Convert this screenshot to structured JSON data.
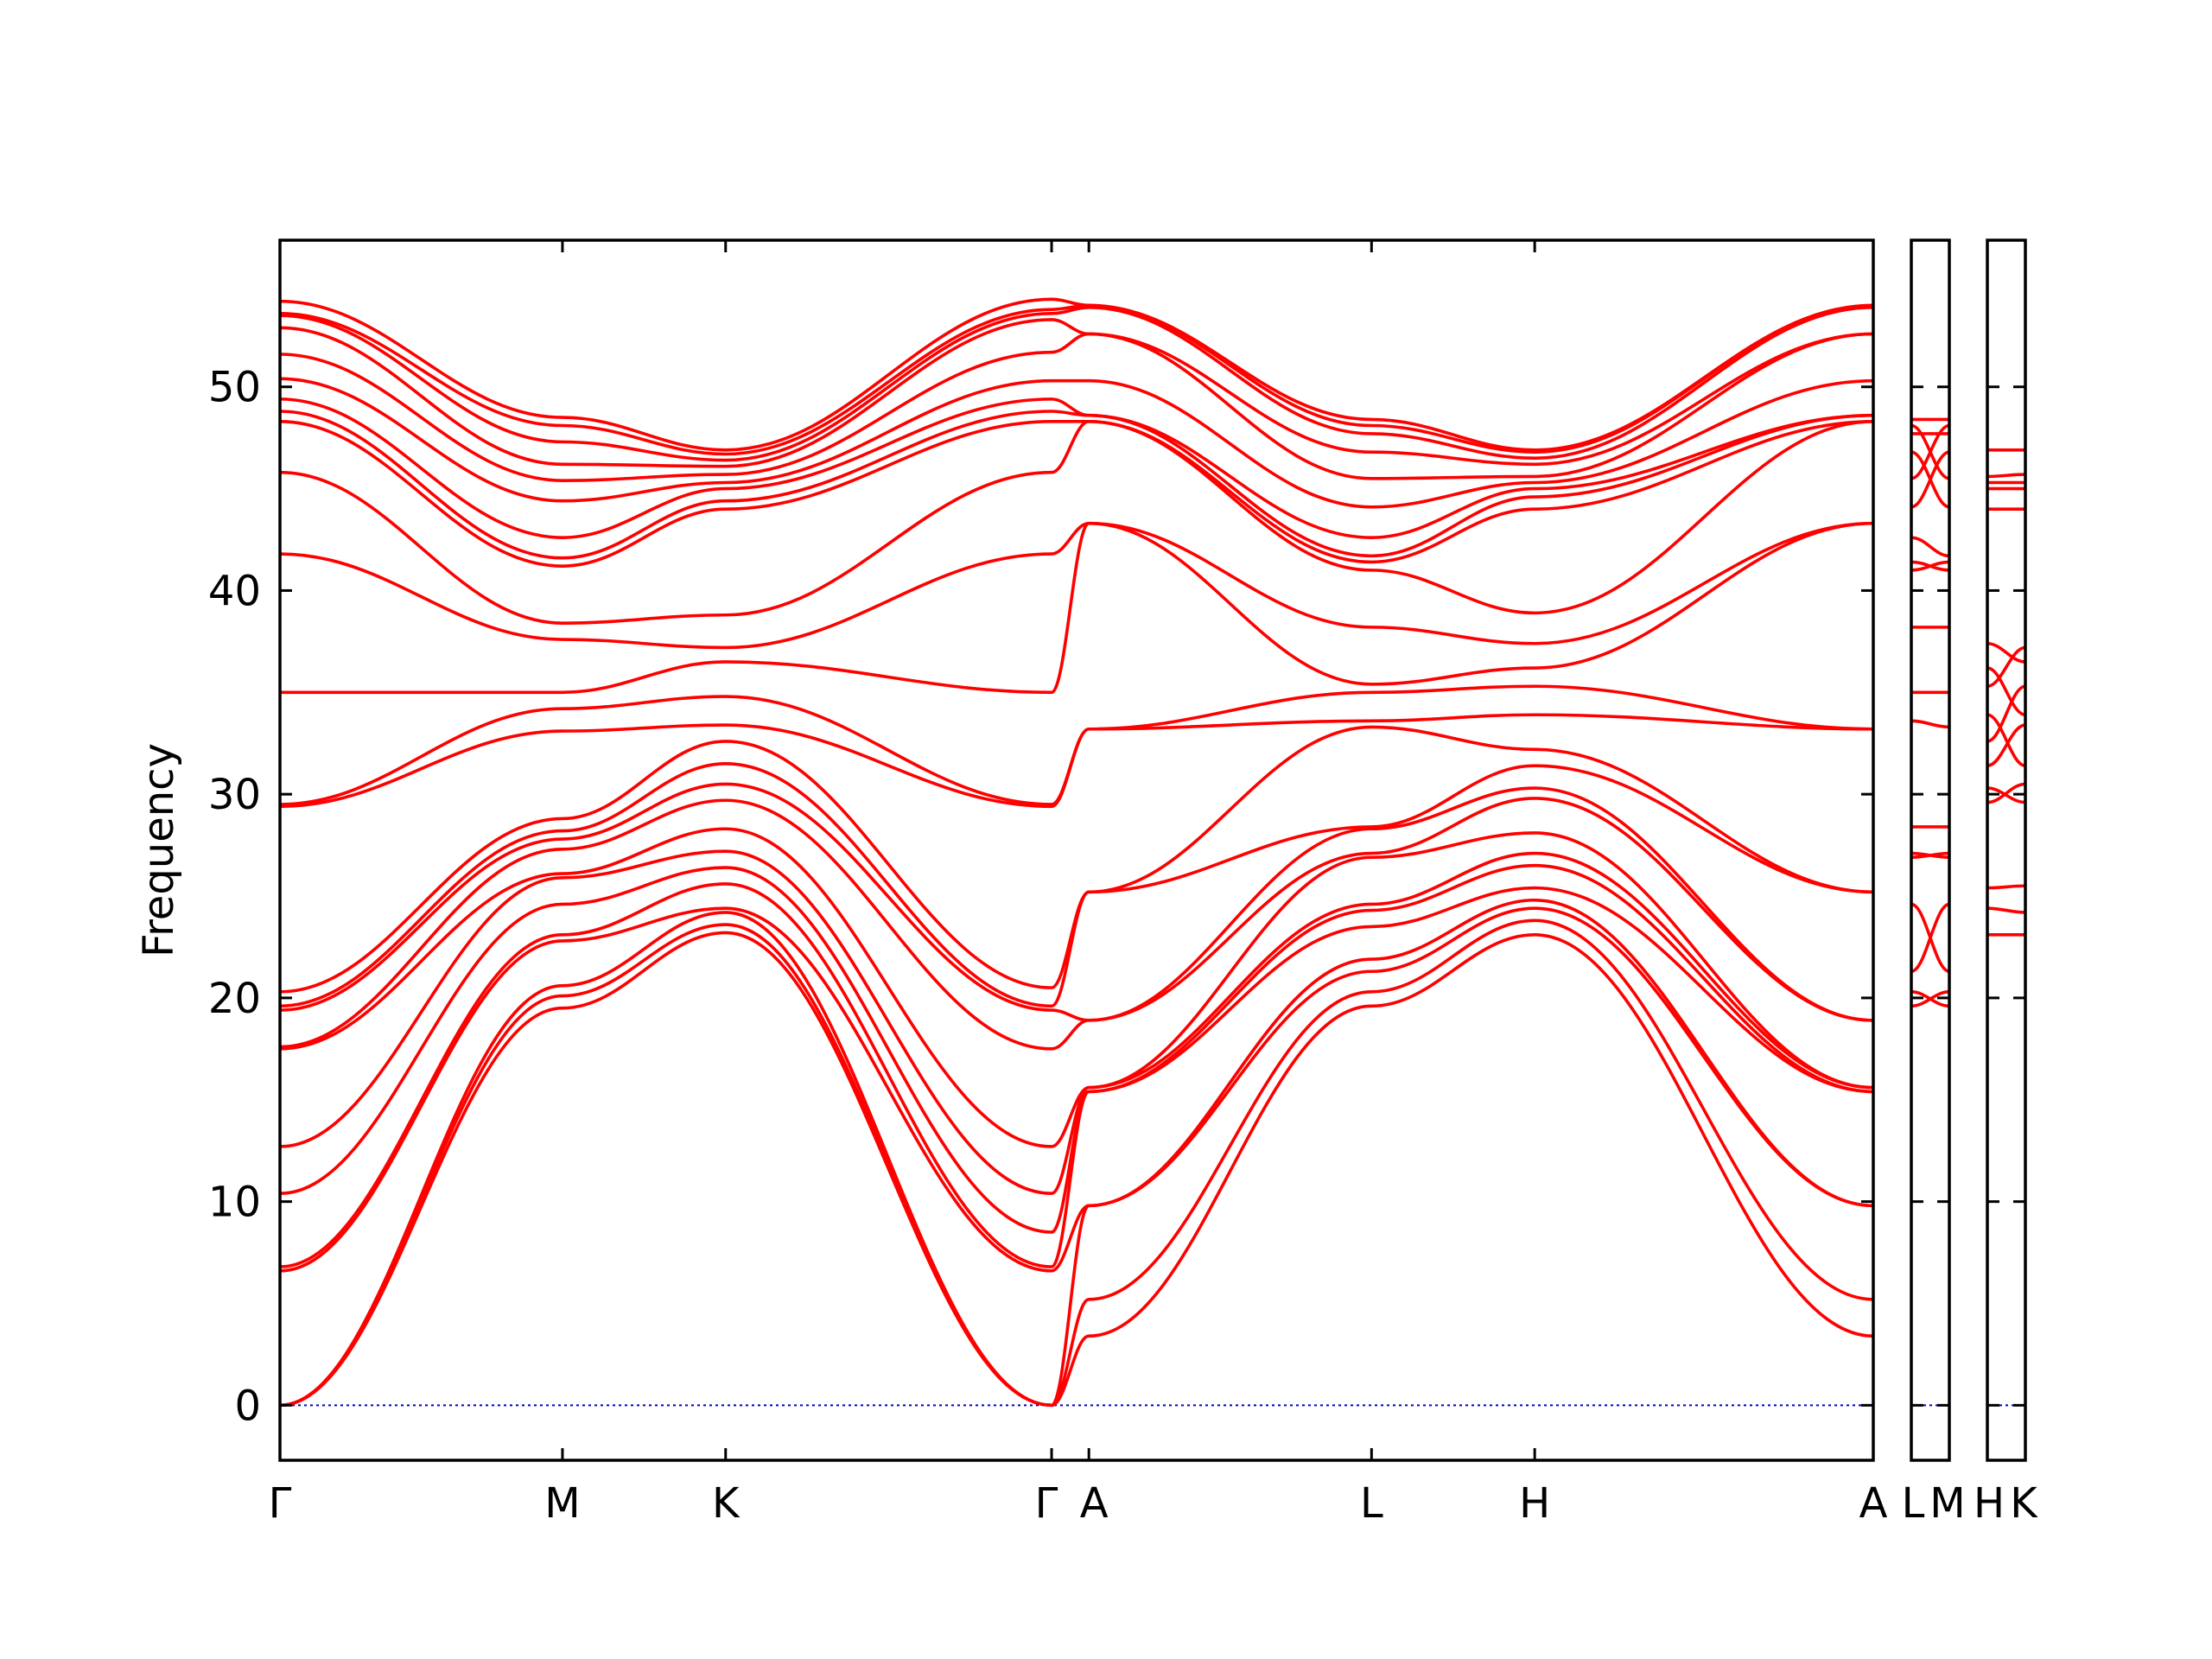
{
  "chart_data": [
    {
      "type": "line",
      "title": "",
      "xlabel": "",
      "ylabel": "Frequency",
      "ylim": [
        -2.7,
        57.2
      ],
      "yticks": [
        0,
        10,
        20,
        30,
        40,
        50
      ],
      "grid": false,
      "legend": "none",
      "colors": {
        "band": "#ff0000",
        "zero": "#0000cc",
        "frame": "#000000"
      },
      "path_labels": [
        "Γ",
        "M",
        "K",
        "Γ",
        "A",
        "L",
        "H",
        "A"
      ],
      "path_positions": [
        0,
        0.1773,
        0.2797,
        0.4843,
        0.5077,
        0.6851,
        0.7875,
        1.0
      ],
      "series": [
        {
          "x": [
            0,
            0.1773,
            0.2797,
            0.4843,
            0.5077,
            0.6851,
            0.7875,
            1.0
          ],
          "y": [
            0,
            19.5,
            23.2,
            0,
            3.4,
            19.6,
            23.1,
            3.4
          ]
        },
        {
          "x": [
            0,
            0.1773,
            0.2797,
            0.4843,
            0.5077,
            0.6851,
            0.7875,
            1.0
          ],
          "y": [
            0,
            20.1,
            23.6,
            0,
            5.2,
            20.3,
            23.8,
            5.2
          ]
        },
        {
          "x": [
            0,
            0.1773,
            0.2797,
            0.4843,
            0.5077,
            0.6851,
            0.7875,
            1.0
          ],
          "y": [
            0,
            20.6,
            24.2,
            0,
            9.8,
            21.3,
            24.4,
            9.8
          ]
        },
        {
          "x": [
            0,
            0.1773,
            0.2797,
            0.4843,
            0.5077,
            0.6851,
            0.7875,
            1.0
          ],
          "y": [
            6.6,
            22.8,
            24.4,
            6.6,
            9.8,
            21.9,
            24.8,
            9.8
          ]
        },
        {
          "x": [
            0,
            0.1773,
            0.2797,
            0.4843,
            0.5077,
            0.6851,
            0.7875,
            1.0
          ],
          "y": [
            6.8,
            23.1,
            25.6,
            6.8,
            15.4,
            23.5,
            25.4,
            15.4
          ]
        },
        {
          "x": [
            0,
            0.1773,
            0.2797,
            0.4843,
            0.5077,
            0.6851,
            0.7875,
            1.0
          ],
          "y": [
            10.4,
            24.6,
            26.4,
            8.5,
            15.4,
            24.3,
            26.5,
            15.4
          ]
        },
        {
          "x": [
            0,
            0.1773,
            0.2797,
            0.4843,
            0.5077,
            0.6851,
            0.7875,
            1.0
          ],
          "y": [
            12.7,
            25.9,
            27.2,
            10.4,
            15.6,
            24.6,
            27.1,
            15.6
          ]
        },
        {
          "x": [
            0,
            0.1773,
            0.2797,
            0.4843,
            0.5077,
            0.6851,
            0.7875,
            1.0
          ],
          "y": [
            17.5,
            26.1,
            28.3,
            12.7,
            15.6,
            26.9,
            28.1,
            15.6
          ]
        },
        {
          "x": [
            0,
            0.1773,
            0.2797,
            0.4843,
            0.5077,
            0.6851,
            0.7875,
            1.0
          ],
          "y": [
            17.6,
            27.3,
            29.7,
            17.5,
            18.9,
            27.1,
            29.8,
            18.9
          ]
        },
        {
          "x": [
            0,
            0.1773,
            0.2797,
            0.4843,
            0.5077,
            0.6851,
            0.7875,
            1.0
          ],
          "y": [
            19.4,
            27.8,
            30.5,
            19.4,
            18.9,
            28.3,
            30.3,
            18.9
          ]
        },
        {
          "x": [
            0,
            0.1773,
            0.2797,
            0.4843,
            0.5077,
            0.6851,
            0.7875,
            1.0
          ],
          "y": [
            19.6,
            28.2,
            31.5,
            19.6,
            25.2,
            28.4,
            31.4,
            25.2
          ]
        },
        {
          "x": [
            0,
            0.1773,
            0.2797,
            0.4843,
            0.5077,
            0.6851,
            0.7875,
            1.0
          ],
          "y": [
            20.3,
            28.8,
            32.6,
            20.5,
            25.2,
            33.3,
            32.2,
            25.2
          ]
        },
        {
          "x": [
            0,
            0.1773,
            0.2797,
            0.4843,
            0.5077,
            0.6851,
            0.7875,
            1.0
          ],
          "y": [
            29.4,
            33.1,
            33.4,
            29.4,
            33.2,
            33.6,
            33.9,
            33.2
          ]
        },
        {
          "x": [
            0,
            0.1773,
            0.2797,
            0.4843,
            0.5077,
            0.6851,
            0.7875,
            1.0
          ],
          "y": [
            29.5,
            34.2,
            34.8,
            29.5,
            33.2,
            35.0,
            35.3,
            33.2
          ]
        },
        {
          "x": [
            0,
            0.1773,
            0.2797,
            0.4843,
            0.5077,
            0.6851,
            0.7875,
            1.0
          ],
          "y": [
            35.0,
            35.0,
            36.5,
            35.0,
            43.3,
            35.4,
            36.2,
            43.3
          ]
        },
        {
          "x": [
            0,
            0.1773,
            0.2797,
            0.4843,
            0.5077,
            0.6851,
            0.7875,
            1.0
          ],
          "y": [
            41.8,
            37.6,
            37.2,
            41.8,
            43.3,
            38.2,
            37.4,
            43.3
          ]
        },
        {
          "x": [
            0,
            0.1773,
            0.2797,
            0.4843,
            0.5077,
            0.6851,
            0.7875,
            1.0
          ],
          "y": [
            45.8,
            38.4,
            38.8,
            45.8,
            48.3,
            41.0,
            38.9,
            48.3
          ]
        },
        {
          "x": [
            0,
            0.1773,
            0.2797,
            0.4843,
            0.5077,
            0.6851,
            0.7875,
            1.0
          ],
          "y": [
            48.3,
            41.2,
            44.0,
            48.3,
            48.3,
            41.4,
            44.0,
            48.3
          ]
        },
        {
          "x": [
            0,
            0.1773,
            0.2797,
            0.4843,
            0.5077,
            0.6851,
            0.7875,
            1.0
          ],
          "y": [
            48.8,
            41.6,
            44.4,
            48.8,
            48.6,
            41.7,
            44.6,
            48.6
          ]
        },
        {
          "x": [
            0,
            0.1773,
            0.2797,
            0.4843,
            0.5077,
            0.6851,
            0.7875,
            1.0
          ],
          "y": [
            49.4,
            42.6,
            45.0,
            49.4,
            48.6,
            42.6,
            45.0,
            48.6
          ]
        },
        {
          "x": [
            0,
            0.1773,
            0.2797,
            0.4843,
            0.5077,
            0.6851,
            0.7875,
            1.0
          ],
          "y": [
            50.4,
            44.4,
            45.3,
            50.3,
            50.3,
            44.1,
            45.3,
            50.3
          ]
        },
        {
          "x": [
            0,
            0.1773,
            0.2797,
            0.4843,
            0.5077,
            0.6851,
            0.7875,
            1.0
          ],
          "y": [
            51.6,
            45.4,
            45.7,
            51.7,
            52.6,
            45.5,
            45.6,
            52.6
          ]
        },
        {
          "x": [
            0,
            0.1773,
            0.2797,
            0.4843,
            0.5077,
            0.6851,
            0.7875,
            1.0
          ],
          "y": [
            52.9,
            46.2,
            46.1,
            53.3,
            52.6,
            46.8,
            46.2,
            52.6
          ]
        },
        {
          "x": [
            0,
            0.1773,
            0.2797,
            0.4843,
            0.5077,
            0.6851,
            0.7875,
            1.0
          ],
          "y": [
            53.5,
            47.3,
            46.4,
            53.6,
            53.9,
            47.7,
            46.5,
            53.9
          ]
        },
        {
          "x": [
            0,
            0.1773,
            0.2797,
            0.4843,
            0.5077,
            0.6851,
            0.7875,
            1.0
          ],
          "y": [
            53.6,
            48.1,
            46.7,
            53.8,
            54.0,
            48.1,
            46.8,
            54.0
          ]
        },
        {
          "x": [
            0,
            0.1773,
            0.2797,
            0.4843,
            0.5077,
            0.6851,
            0.7875,
            1.0
          ],
          "y": [
            54.2,
            48.5,
            46.9,
            54.3,
            54.0,
            48.4,
            46.9,
            54.0
          ]
        }
      ]
    },
    {
      "type": "line",
      "title": "",
      "ylim": [
        -2.7,
        57.2
      ],
      "grid": false,
      "path_labels": [
        "L",
        "M"
      ],
      "colors": {
        "band": "#ff0000"
      },
      "series": [
        {
          "x": [
            0,
            1
          ],
          "y": [
            19.6,
            20.3
          ]
        },
        {
          "x": [
            0,
            1
          ],
          "y": [
            20.3,
            19.6
          ]
        },
        {
          "x": [
            0,
            1
          ],
          "y": [
            21.3,
            24.6
          ]
        },
        {
          "x": [
            0,
            1
          ],
          "y": [
            24.6,
            21.3
          ]
        },
        {
          "x": [
            0,
            1
          ],
          "y": [
            26.9,
            27.1
          ]
        },
        {
          "x": [
            0,
            1
          ],
          "y": [
            27.1,
            26.9
          ]
        },
        {
          "x": [
            0,
            1
          ],
          "y": [
            28.4,
            28.4
          ]
        },
        {
          "x": [
            0,
            1
          ],
          "y": [
            33.6,
            33.3
          ]
        },
        {
          "x": [
            0,
            1
          ],
          "y": [
            35.0,
            35.0
          ]
        },
        {
          "x": [
            0,
            1
          ],
          "y": [
            38.2,
            38.2
          ]
        },
        {
          "x": [
            0,
            1
          ],
          "y": [
            41.0,
            41.4
          ]
        },
        {
          "x": [
            0,
            1
          ],
          "y": [
            41.4,
            41.0
          ]
        },
        {
          "x": [
            0,
            1
          ],
          "y": [
            42.6,
            41.7
          ]
        },
        {
          "x": [
            0,
            1
          ],
          "y": [
            44.1,
            46.8
          ]
        },
        {
          "x": [
            0,
            1
          ],
          "y": [
            45.5,
            48.1
          ]
        },
        {
          "x": [
            0,
            1
          ],
          "y": [
            46.8,
            44.1
          ]
        },
        {
          "x": [
            0,
            1
          ],
          "y": [
            47.7,
            47.7
          ]
        },
        {
          "x": [
            0,
            1
          ],
          "y": [
            48.1,
            45.5
          ]
        },
        {
          "x": [
            0,
            1
          ],
          "y": [
            48.4,
            48.4
          ]
        }
      ]
    },
    {
      "type": "line",
      "title": "",
      "ylim": [
        -2.7,
        57.2
      ],
      "grid": false,
      "path_labels": [
        "H",
        "K"
      ],
      "colors": {
        "band": "#ff0000"
      },
      "series": [
        {
          "x": [
            0,
            1
          ],
          "y": [
            23.1,
            23.1
          ]
        },
        {
          "x": [
            0,
            1
          ],
          "y": [
            24.4,
            24.2
          ]
        },
        {
          "x": [
            0,
            1
          ],
          "y": [
            25.4,
            25.5
          ]
        },
        {
          "x": [
            0,
            1
          ],
          "y": [
            29.6,
            30.5
          ]
        },
        {
          "x": [
            0,
            1
          ],
          "y": [
            30.3,
            29.6
          ]
        },
        {
          "x": [
            0,
            1
          ],
          "y": [
            31.4,
            33.4
          ]
        },
        {
          "x": [
            0,
            1
          ],
          "y": [
            32.6,
            35.3
          ]
        },
        {
          "x": [
            0,
            1
          ],
          "y": [
            33.9,
            31.4
          ]
        },
        {
          "x": [
            0,
            1
          ],
          "y": [
            35.3,
            37.2
          ]
        },
        {
          "x": [
            0,
            1
          ],
          "y": [
            36.2,
            33.9
          ]
        },
        {
          "x": [
            0,
            1
          ],
          "y": [
            37.4,
            36.5
          ]
        },
        {
          "x": [
            0,
            1
          ],
          "y": [
            44.0,
            44.0
          ]
        },
        {
          "x": [
            0,
            1
          ],
          "y": [
            45.0,
            45.0
          ]
        },
        {
          "x": [
            0,
            1
          ],
          "y": [
            45.3,
            45.3
          ]
        },
        {
          "x": [
            0,
            1
          ],
          "y": [
            45.6,
            45.7
          ]
        },
        {
          "x": [
            0,
            1
          ],
          "y": [
            46.9,
            46.9
          ]
        }
      ]
    }
  ]
}
